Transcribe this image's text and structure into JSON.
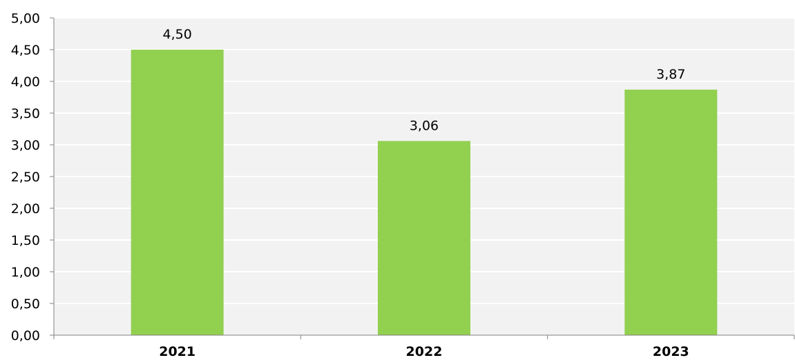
{
  "chart_data": {
    "type": "bar",
    "categories": [
      "2021",
      "2022",
      "2023"
    ],
    "values": [
      4.5,
      3.06,
      3.87
    ],
    "value_labels": [
      "4,50",
      "3,06",
      "3,87"
    ],
    "ylim": [
      0,
      5
    ],
    "y_ticks": [
      0,
      0.5,
      1,
      1.5,
      2,
      2.5,
      3,
      3.5,
      4,
      4.5,
      5
    ],
    "y_tick_labels": [
      "0,00",
      "0,50",
      "1,00",
      "1,50",
      "2,00",
      "2,50",
      "3,00",
      "3,50",
      "4,00",
      "4,50",
      "5,00"
    ],
    "grid": true,
    "colors": {
      "bar": "#92d050",
      "plot_background": "#f2f2f2",
      "grid": "#ffffff",
      "axis": "#808080"
    }
  }
}
